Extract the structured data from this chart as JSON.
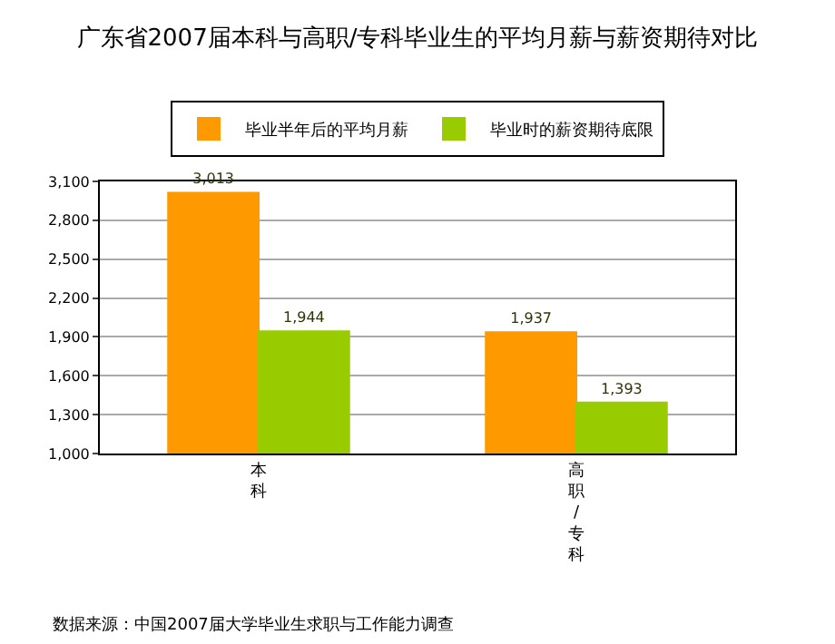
{
  "chart_data": {
    "type": "bar",
    "title": "广东省2007届本科与高职/专科毕业生的平均月薪与薪资期待对比",
    "categories": [
      "本科",
      "高职/专科"
    ],
    "series": [
      {
        "name": "毕业半年后的平均月薪",
        "color": "#ff9900",
        "values": [
          3013,
          1937
        ],
        "value_labels": [
          "3,013",
          "1,937"
        ]
      },
      {
        "name": "毕业时的薪资期待底限",
        "color": "#99cc00",
        "values": [
          1944,
          1393
        ],
        "value_labels": [
          "1,944",
          "1,393"
        ]
      }
    ],
    "ylim": [
      1000,
      3100
    ],
    "yticks": [
      {
        "value": 1000,
        "label": "1,000"
      },
      {
        "value": 1300,
        "label": "1,300"
      },
      {
        "value": 1600,
        "label": "1,600"
      },
      {
        "value": 1900,
        "label": "1,900"
      },
      {
        "value": 2200,
        "label": "2,200"
      },
      {
        "value": 2500,
        "label": "2,500"
      },
      {
        "value": 2800,
        "label": "2,800"
      },
      {
        "value": 3100,
        "label": "3,100"
      }
    ],
    "grid": "y",
    "legend": "top",
    "annotations": [
      "数据来源：中国2007届大学毕业生求职与工作能力调查"
    ]
  }
}
